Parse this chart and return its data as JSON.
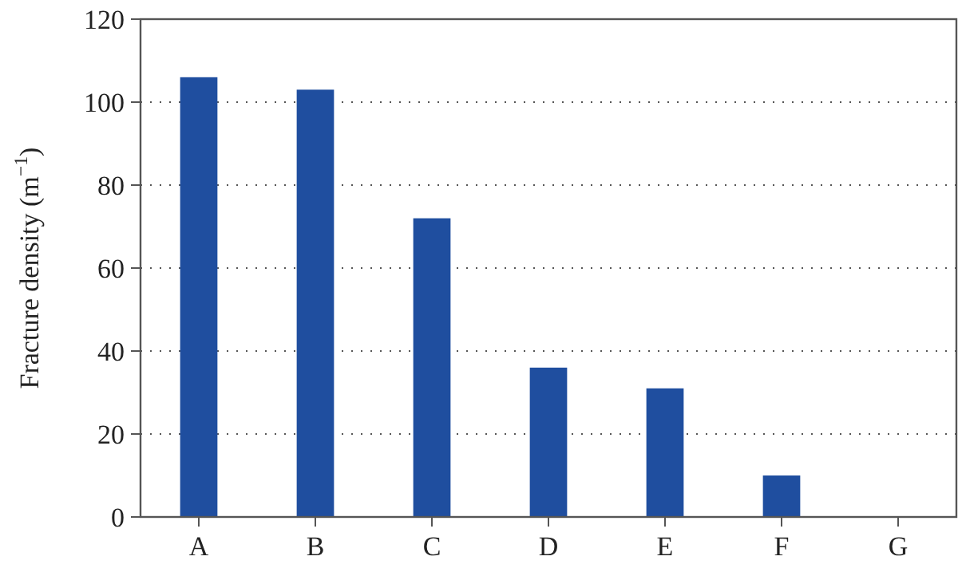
{
  "chart_data": {
    "type": "bar",
    "ylabel": "Fracture density (m$^{−1}$)",
    "categories": [
      "A",
      "B",
      "C",
      "D",
      "E",
      "F",
      "G"
    ],
    "values": [
      106,
      103,
      72,
      36,
      31,
      10,
      0
    ],
    "color": "#1f4e9f",
    "ylim": [
      0,
      120
    ],
    "yticks": [
      0,
      20,
      40,
      60,
      80,
      100,
      120
    ],
    "grid": "y"
  }
}
